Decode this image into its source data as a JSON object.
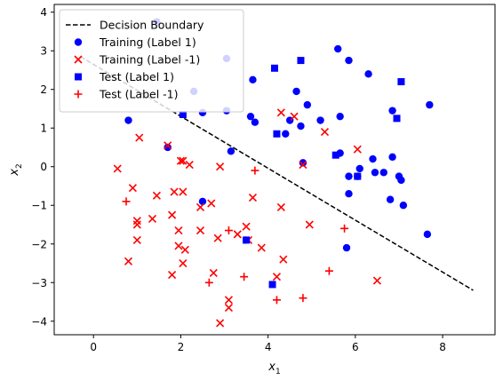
{
  "chart_data": {
    "type": "scatter",
    "xlim": [
      -0.9,
      9.2
    ],
    "ylim": [
      -4.35,
      4.2
    ],
    "xticks": [
      0,
      2,
      4,
      6,
      8
    ],
    "yticks": [
      -4,
      -3,
      -2,
      -1,
      0,
      1,
      2,
      3,
      4
    ],
    "xlabel_main": "x",
    "xlabel_sub": "1",
    "ylabel_main": "x",
    "ylabel_sub": "2",
    "grid": false,
    "legend_position": "upper-left",
    "colors": {
      "positive": "#0000ff",
      "negative": "#ff0000",
      "boundary": "#000000"
    },
    "boundary": {
      "name": "Decision Boundary",
      "style": "dashed",
      "x": [
        -0.3,
        8.7
      ],
      "y": [
        2.85,
        -3.2
      ]
    },
    "series": [
      {
        "name": "Training (Label 1)",
        "marker": "circle",
        "color": "#0000ff",
        "points": [
          [
            0.8,
            1.2
          ],
          [
            1.7,
            0.5
          ],
          [
            2.3,
            1.95
          ],
          [
            2.5,
            1.4
          ],
          [
            2.5,
            -0.9
          ],
          [
            3.05,
            2.8
          ],
          [
            3.05,
            1.45
          ],
          [
            3.15,
            0.4
          ],
          [
            3.6,
            1.3
          ],
          [
            3.65,
            2.25
          ],
          [
            3.7,
            1.15
          ],
          [
            4.4,
            0.85
          ],
          [
            4.5,
            1.2
          ],
          [
            4.65,
            1.95
          ],
          [
            4.75,
            1.05
          ],
          [
            4.8,
            0.1
          ],
          [
            4.9,
            1.6
          ],
          [
            5.2,
            1.2
          ],
          [
            5.6,
            3.05
          ],
          [
            5.65,
            0.35
          ],
          [
            5.65,
            1.3
          ],
          [
            5.85,
            2.75
          ],
          [
            5.85,
            -0.25
          ],
          [
            5.85,
            -0.7
          ],
          [
            5.8,
            -2.1
          ],
          [
            6.05,
            -0.25
          ],
          [
            6.1,
            -0.05
          ],
          [
            6.3,
            2.4
          ],
          [
            6.4,
            0.2
          ],
          [
            6.45,
            -0.15
          ],
          [
            6.65,
            -0.15
          ],
          [
            6.8,
            -0.85
          ],
          [
            6.85,
            1.45
          ],
          [
            6.85,
            0.25
          ],
          [
            7.0,
            -0.25
          ],
          [
            7.05,
            -0.35
          ],
          [
            7.1,
            -1.0
          ],
          [
            7.65,
            -1.75
          ],
          [
            7.7,
            1.6
          ],
          [
            1.45,
            3.75
          ]
        ]
      },
      {
        "name": "Training (Label -1)",
        "marker": "x",
        "color": "#ff0000",
        "points": [
          [
            0.55,
            -0.05
          ],
          [
            0.8,
            -2.45
          ],
          [
            0.9,
            -0.55
          ],
          [
            1.0,
            -1.4
          ],
          [
            1.0,
            -1.5
          ],
          [
            1.0,
            -1.9
          ],
          [
            1.05,
            0.75
          ],
          [
            1.35,
            -1.35
          ],
          [
            1.45,
            -0.75
          ],
          [
            1.7,
            0.55
          ],
          [
            1.8,
            -1.25
          ],
          [
            1.8,
            -2.8
          ],
          [
            1.85,
            -0.65
          ],
          [
            1.95,
            -1.65
          ],
          [
            1.95,
            -2.05
          ],
          [
            2.0,
            0.15
          ],
          [
            2.05,
            0.15
          ],
          [
            2.05,
            -0.65
          ],
          [
            2.05,
            -2.5
          ],
          [
            2.1,
            -2.15
          ],
          [
            2.2,
            0.05
          ],
          [
            2.45,
            -1.65
          ],
          [
            2.7,
            -0.95
          ],
          [
            2.75,
            -2.75
          ],
          [
            2.85,
            -1.85
          ],
          [
            2.9,
            0.0
          ],
          [
            2.9,
            -4.05
          ],
          [
            3.1,
            -3.45
          ],
          [
            3.1,
            -3.65
          ],
          [
            3.3,
            -1.75
          ],
          [
            3.5,
            -1.55
          ],
          [
            3.65,
            -0.8
          ],
          [
            3.85,
            -2.1
          ],
          [
            4.2,
            -2.85
          ],
          [
            4.3,
            1.4
          ],
          [
            4.3,
            -1.05
          ],
          [
            4.35,
            -2.4
          ],
          [
            4.8,
            0.05
          ],
          [
            4.95,
            -1.5
          ],
          [
            5.3,
            0.9
          ],
          [
            6.05,
            0.45
          ],
          [
            6.5,
            -2.95
          ],
          [
            4.6,
            1.3
          ],
          [
            3.55,
            -1.9
          ],
          [
            2.45,
            -1.05
          ]
        ]
      },
      {
        "name": "Test (Label 1)",
        "marker": "square",
        "color": "#0000ff",
        "points": [
          [
            2.05,
            1.35
          ],
          [
            3.5,
            -1.9
          ],
          [
            4.1,
            -3.05
          ],
          [
            4.15,
            2.55
          ],
          [
            4.2,
            0.85
          ],
          [
            4.75,
            2.75
          ],
          [
            5.55,
            0.3
          ],
          [
            6.05,
            -0.25
          ],
          [
            6.95,
            1.25
          ],
          [
            7.05,
            2.2
          ]
        ]
      },
      {
        "name": "Test (Label -1)",
        "marker": "plus",
        "color": "#ff0000",
        "points": [
          [
            0.75,
            -0.9
          ],
          [
            2.65,
            -3.0
          ],
          [
            3.1,
            -1.65
          ],
          [
            3.45,
            -2.85
          ],
          [
            3.7,
            -0.1
          ],
          [
            4.2,
            -3.45
          ],
          [
            4.8,
            -3.4
          ],
          [
            5.4,
            -2.7
          ],
          [
            5.75,
            -1.6
          ]
        ]
      }
    ]
  }
}
